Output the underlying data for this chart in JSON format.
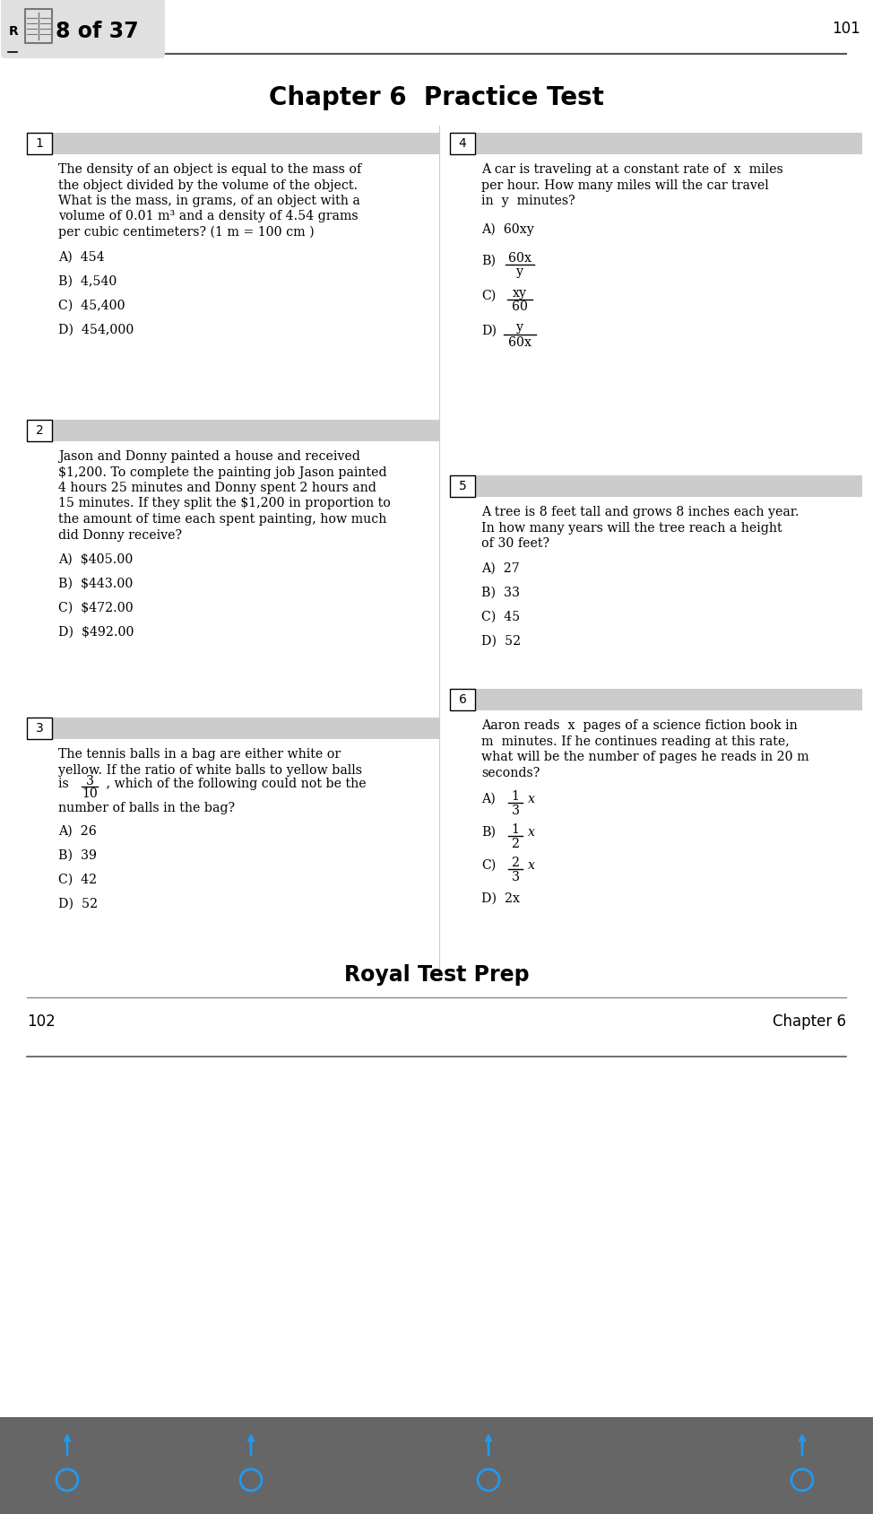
{
  "bg_color": "#ffffff",
  "dark_footer_bg": "#666666",
  "title": "Chapter 6  Practice Test",
  "page_num_top": "101",
  "page_num_bottom": "102",
  "chapter_bottom": "Chapter 6",
  "footer_text": "Royal Test Prep",
  "question_header_bg": "#cccccc",
  "q1_text_lines": [
    "The density of an object is equal to the mass of",
    "the object divided by the volume of the object.",
    "What is the mass, in grams, of an object with a",
    "volume of 0.01 m³ and a density of 4.54 grams",
    "per cubic centimeters? (1 m = 100 cm )"
  ],
  "q1_choices": [
    "A)  454",
    "B)  4,540",
    "C)  45,400",
    "D)  454,000"
  ],
  "q2_text_lines": [
    "Jason and Donny painted a house and received",
    "$1,200. To complete the painting job Jason painted",
    "4 hours 25 minutes and Donny spent 2 hours and",
    "15 minutes. If they split the $1,200 in proportion to",
    "the amount of time each spent painting, how much",
    "did Donny receive?"
  ],
  "q2_choices": [
    "A)  $405.00",
    "B)  $443.00",
    "C)  $472.00",
    "D)  $492.00"
  ],
  "q3_text_line1": "The tennis balls in a bag are either white or",
  "q3_text_line2": "yellow. If the ratio of white balls to yellow balls",
  "q3_text_line3": " , which of the following could not be the",
  "q3_text_line4": "number of balls in the bag?",
  "q3_choices": [
    "A)  26",
    "B)  39",
    "C)  42",
    "D)  52"
  ],
  "q4_text_lines": [
    "A car is traveling at a constant rate of  x  miles",
    "per hour. How many miles will the car travel",
    "in  y  minutes?"
  ],
  "q5_text_lines": [
    "A tree is 8 feet tall and grows 8 inches each year.",
    "In how many years will the tree reach a height",
    "of 30 feet?"
  ],
  "q5_choices": [
    "A)  27",
    "B)  33",
    "C)  45",
    "D)  52"
  ],
  "q6_text_lines": [
    "Aaron reads  x  pages of a science fiction book in",
    "m  minutes. If he continues reading at this rate,",
    "what will be the number of pages he reads in 20 m",
    "seconds?"
  ]
}
